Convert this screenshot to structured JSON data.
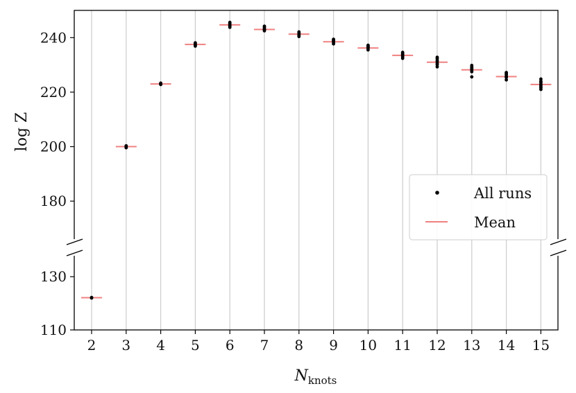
{
  "chart_data": {
    "type": "scatter",
    "xlabel_main": "N",
    "xlabel_sub": "knots",
    "ylabel": "log Z",
    "categories": [
      2,
      3,
      4,
      5,
      6,
      7,
      8,
      9,
      10,
      11,
      12,
      13,
      14,
      15
    ],
    "y_ticks_upper": [
      180,
      200,
      220,
      240
    ],
    "y_ticks_lower": [
      110,
      130
    ],
    "ylim_upper": [
      163,
      250
    ],
    "ylim_lower": [
      110,
      141
    ],
    "axis_break": true,
    "grid": "vertical",
    "legend_position": "center-right",
    "colors": {
      "runs": "#000000",
      "mean": "#f08080",
      "grid": "#cccccc"
    },
    "series": [
      {
        "name": "All runs",
        "style": "points",
        "runs": [
          [
            122.1,
            122.0,
            122.2
          ],
          [
            200.0,
            199.6,
            200.3,
            199.8
          ],
          [
            223.0,
            223.3,
            222.8,
            223.1
          ],
          [
            237.2,
            237.8,
            237.5,
            238.1,
            236.9
          ],
          [
            243.8,
            245.0,
            244.5,
            245.6,
            244.2,
            245.2
          ],
          [
            242.5,
            243.4,
            243.9,
            242.9,
            244.2,
            243.1
          ],
          [
            240.4,
            241.3,
            241.9,
            240.8,
            242.1,
            241.5
          ],
          [
            237.7,
            238.6,
            239.1,
            238.2,
            239.4,
            238.9
          ],
          [
            235.5,
            236.4,
            237.0,
            236.1,
            237.2,
            236.7
          ],
          [
            232.4,
            233.4,
            234.2,
            233.0,
            234.6,
            233.8
          ],
          [
            229.3,
            230.5,
            231.6,
            230.1,
            232.3,
            232.8,
            231.2
          ],
          [
            225.6,
            227.5,
            228.5,
            229.2,
            228.0,
            229.8,
            228.9
          ],
          [
            224.5,
            225.4,
            226.4,
            225.8,
            227.2,
            226.8
          ],
          [
            221.0,
            222.0,
            223.0,
            222.5,
            224.0,
            224.8,
            223.6,
            221.6
          ]
        ]
      },
      {
        "name": "Mean",
        "style": "hline",
        "values": [
          122.1,
          200.0,
          223.0,
          237.5,
          244.7,
          243.0,
          241.3,
          238.5,
          236.2,
          233.5,
          231.0,
          228.2,
          225.7,
          222.8
        ]
      }
    ]
  }
}
